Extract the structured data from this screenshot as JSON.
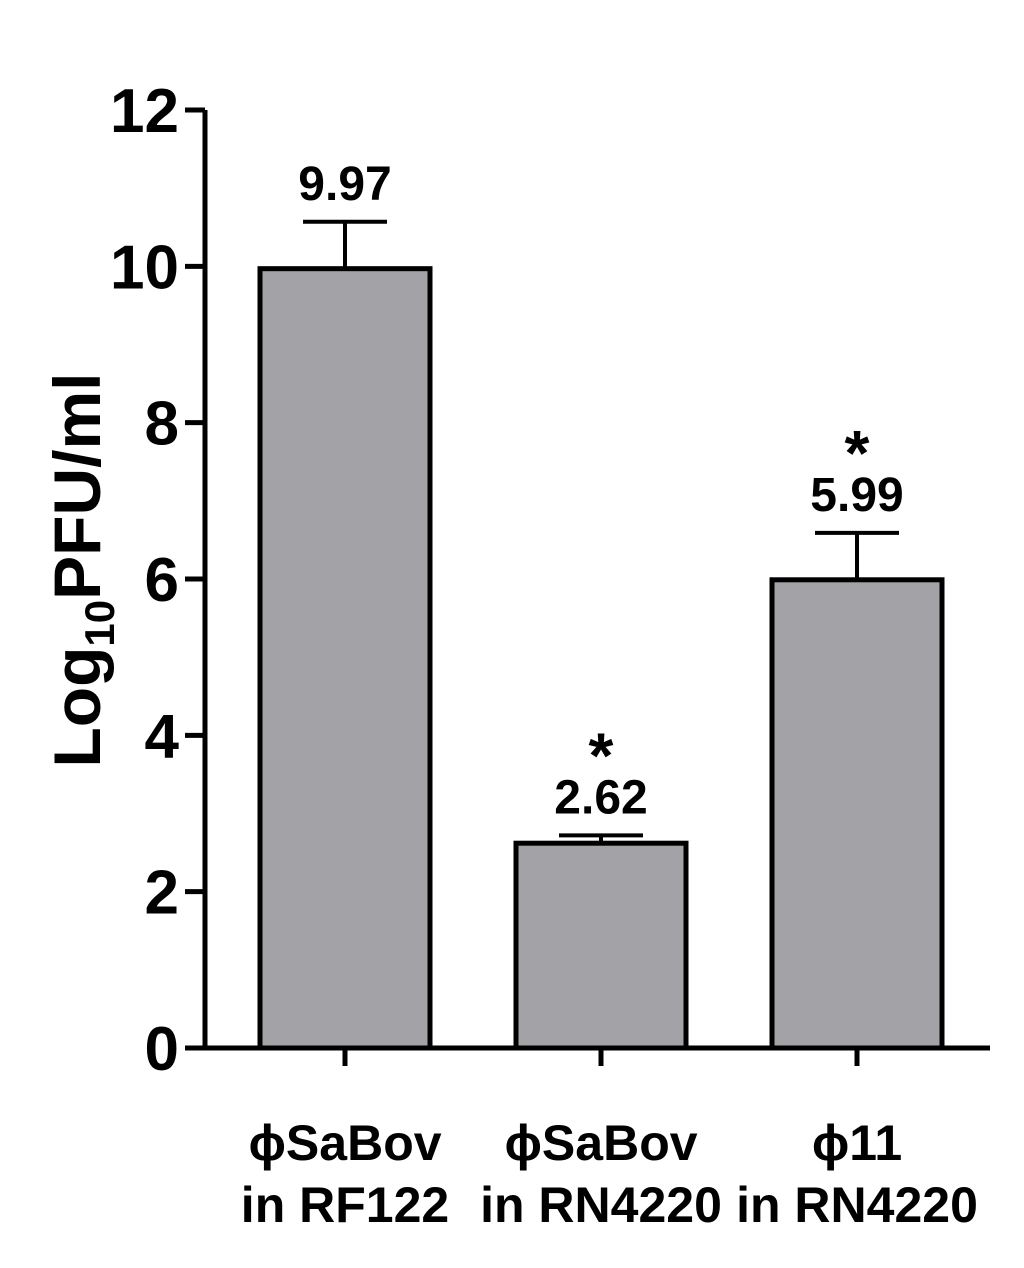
{
  "chart_data": {
    "type": "bar",
    "ylabel_main": "Log",
    "ylabel_sub": "10",
    "ylabel_rest": "PFU/ml",
    "xlabel": "",
    "ylim": [
      0,
      12
    ],
    "yticks": [
      0,
      2,
      4,
      6,
      8,
      10,
      12
    ],
    "categories": [
      [
        "ϕSaBov",
        "in RF122"
      ],
      [
        "ϕSaBov",
        "in RN4220"
      ],
      [
        "ϕ11",
        "in RN4220"
      ]
    ],
    "values": [
      9.97,
      2.62,
      5.99
    ],
    "errors": [
      0.6,
      0.1,
      0.6
    ],
    "data_labels": [
      "9.97",
      "2.62",
      "5.99"
    ],
    "significance": [
      "",
      "*",
      "*"
    ],
    "grid": false,
    "legend": "none",
    "colors": {
      "bar_fill": "#a3a2a7",
      "bar_stroke": "#000000",
      "axis": "#000000"
    }
  }
}
